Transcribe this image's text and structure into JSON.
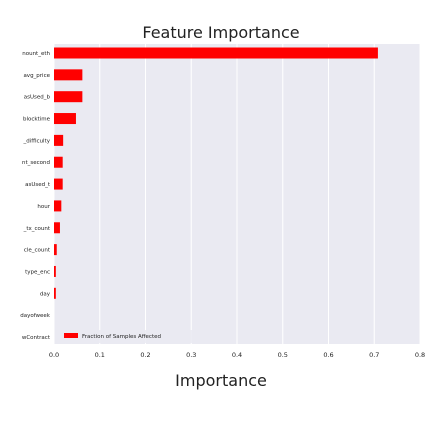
{
  "chart_data": {
    "type": "bar",
    "orientation": "horizontal",
    "title": "Feature Importance",
    "xlabel": "Importance",
    "ylabel": "",
    "xlim": [
      0,
      0.8
    ],
    "xticks": [
      0.0,
      0.1,
      0.2,
      0.3,
      0.4,
      0.5,
      0.6,
      0.7,
      0.8
    ],
    "xtick_labels": [
      "0.0",
      "0.1",
      "0.2",
      "0.3",
      "0.4",
      "0.5",
      "0.6",
      "0.7",
      "0.8"
    ],
    "categories": [
      "nount_eth",
      "avg_price",
      "asUsed_b",
      "blocktime",
      "_difficulty",
      "nt_second",
      "asUsed_t",
      "hour",
      "_tx_count",
      "cle_count",
      "type_enc",
      "day",
      "dayofweek",
      "wContract"
    ],
    "series": [
      {
        "name": "Fraction of Samples Affected",
        "color": "#ff0000",
        "values": [
          0.708,
          0.062,
          0.062,
          0.048,
          0.02,
          0.019,
          0.019,
          0.016,
          0.013,
          0.006,
          0.004,
          0.004,
          0.0,
          0.0
        ]
      }
    ],
    "grid": true,
    "legend_position": "bottom-left",
    "background": "#eaeaf2",
    "grid_color": "#ffffff"
  }
}
